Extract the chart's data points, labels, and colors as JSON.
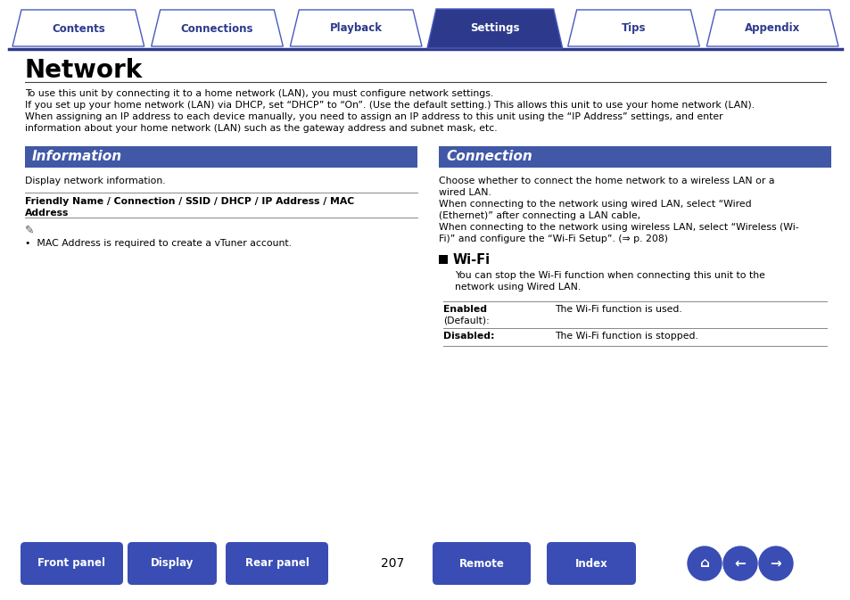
{
  "tab_labels": [
    "Contents",
    "Connections",
    "Playback",
    "Settings",
    "Tips",
    "Appendix"
  ],
  "active_tab": "Settings",
  "tab_color_active": "#2d3a8c",
  "tab_color_inactive": "#ffffff",
  "tab_border_color": "#4a5abf",
  "page_title": "Network",
  "intro_lines": [
    "To use this unit by connecting it to a home network (LAN), you must configure network settings.",
    "If you set up your home network (LAN) via DHCP, set “DHCP” to “On”. (Use the default setting.) This allows this unit to use your home network (LAN).",
    "When assigning an IP address to each device manually, you need to assign an IP address to this unit using the “IP Address” settings, and enter",
    "information about your home network (LAN) such as the gateway address and subnet mask, etc."
  ],
  "section_header_color": "#4158a6",
  "section_header_text_color": "#ffffff",
  "info_header": "Information",
  "info_body": "Display network information.",
  "info_subheader_bold": "Friendly Name / Connection / SSID / DHCP / IP Address / MAC",
  "info_subheader_bold2": "Address",
  "info_note": "•  MAC Address is required to create a vTuner account.",
  "conn_header": "Connection",
  "conn_body_lines": [
    "Choose whether to connect the home network to a wireless LAN or a",
    "wired LAN.",
    "When connecting to the network using wired LAN, select “Wired",
    "(Ethernet)” after connecting a LAN cable,",
    "When connecting to the network using wireless LAN, select “Wireless (Wi-",
    "Fi)” and configure the “Wi-Fi Setup”. (⇒ p. 208)"
  ],
  "wifi_header": "Wi-Fi",
  "wifi_body_lines": [
    "You can stop the Wi-Fi function when connecting this unit to the",
    "network using Wired LAN."
  ],
  "wifi_table": [
    {
      "label1": "Enabled",
      "label2": "(Default):",
      "desc": "The Wi-Fi function is used."
    },
    {
      "label1": "Disabled:",
      "label2": "",
      "desc": "The Wi-Fi function is stopped."
    }
  ],
  "bottom_buttons": [
    "Front panel",
    "Display",
    "Rear panel",
    "Remote",
    "Index"
  ],
  "bottom_button_color": "#3a4db5",
  "bottom_button_text_color": "#ffffff",
  "page_number": "207",
  "background_color": "#ffffff",
  "text_color": "#000000",
  "body_font_size": 7.8,
  "title_font_size": 20,
  "tab_font_size": 8.5,
  "section_font_size": 11
}
